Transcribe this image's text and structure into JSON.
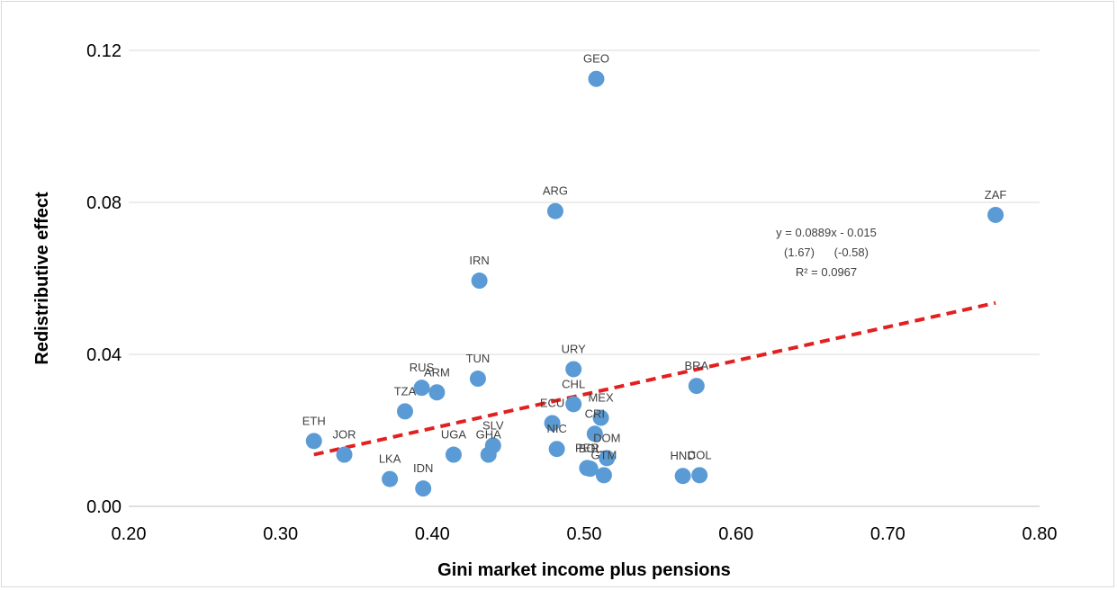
{
  "chart_data": {
    "type": "scatter",
    "title": "",
    "xlabel": "Gini market income plus pensions",
    "ylabel": "Redistributive effect",
    "xlim": [
      0.2,
      0.8
    ],
    "ylim": [
      0.0,
      0.12
    ],
    "x_ticks": [
      "0.20",
      "0.30",
      "0.40",
      "0.50",
      "0.60",
      "0.70",
      "0.80"
    ],
    "y_ticks": [
      "0.00",
      "0.04",
      "0.08",
      "0.12"
    ],
    "grid": "horizontal",
    "marker_color": "#5B9BD5",
    "trendline_color": "#E32020",
    "points": [
      {
        "label": "GEO",
        "x": 0.508,
        "y": 0.1125
      },
      {
        "label": "ZAF",
        "x": 0.771,
        "y": 0.0767
      },
      {
        "label": "ARG",
        "x": 0.481,
        "y": 0.0777
      },
      {
        "label": "IRN",
        "x": 0.431,
        "y": 0.0594
      },
      {
        "label": "URY",
        "x": 0.493,
        "y": 0.0361
      },
      {
        "label": "TUN",
        "x": 0.43,
        "y": 0.0336
      },
      {
        "label": "BRA",
        "x": 0.574,
        "y": 0.0317
      },
      {
        "label": "RUS",
        "x": 0.393,
        "y": 0.0312
      },
      {
        "label": "ARM",
        "x": 0.403,
        "y": 0.03
      },
      {
        "label": "CHL",
        "x": 0.493,
        "y": 0.0269
      },
      {
        "label": "TZA",
        "x": 0.382,
        "y": 0.025
      },
      {
        "label": "MEX",
        "x": 0.511,
        "y": 0.0233
      },
      {
        "label": "ECU",
        "x": 0.479,
        "y": 0.0219
      },
      {
        "label": "CRI",
        "x": 0.507,
        "y": 0.0191
      },
      {
        "label": "ETH",
        "x": 0.322,
        "y": 0.0172
      },
      {
        "label": "SLV",
        "x": 0.44,
        "y": 0.016
      },
      {
        "label": "NIC",
        "x": 0.482,
        "y": 0.0151
      },
      {
        "label": "JOR",
        "x": 0.342,
        "y": 0.0136
      },
      {
        "label": "UGA",
        "x": 0.414,
        "y": 0.0136
      },
      {
        "label": "GHA",
        "x": 0.437,
        "y": 0.0136
      },
      {
        "label": "DOM",
        "x": 0.515,
        "y": 0.0127
      },
      {
        "label": "PER",
        "x": 0.502,
        "y": 0.0101
      },
      {
        "label": "BOL",
        "x": 0.504,
        "y": 0.0099
      },
      {
        "label": "GTM",
        "x": 0.513,
        "y": 0.0082
      },
      {
        "label": "HND",
        "x": 0.565,
        "y": 0.008
      },
      {
        "label": "COL",
        "x": 0.576,
        "y": 0.0082
      },
      {
        "label": "LKA",
        "x": 0.372,
        "y": 0.0072
      },
      {
        "label": "IDN",
        "x": 0.394,
        "y": 0.0047
      }
    ],
    "trendline": {
      "x": [
        0.322,
        0.771
      ],
      "slope": 0.0889,
      "intercept": -0.015,
      "equation": "y = 0.0889x - 0.015",
      "t_stats": "(1.67)      (-0.58)",
      "r2": "R² = 0.0967"
    }
  }
}
